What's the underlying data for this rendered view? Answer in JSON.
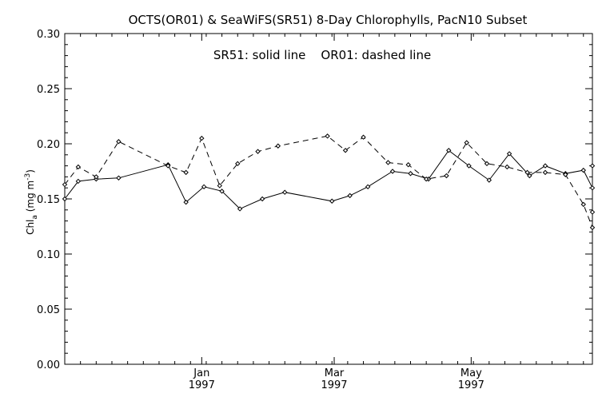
{
  "chart_data": {
    "type": "line",
    "title": "OCTS(OR01) & SeaWiFS(SR51) 8-Day Chlorophylls, PacN10 Subset",
    "annotation": "SR51: solid line    OR01: dashed line",
    "ylabel": "Chl_a (mg m^-3)",
    "ylabel_main": "Chl",
    "ylabel_sub": "a",
    "ylabel_unit": "(mg m",
    "ylabel_sup": "-3",
    "ylabel_close": ")",
    "ylim": [
      0.0,
      0.3
    ],
    "yticks": [
      "0.00",
      "0.05",
      "0.10",
      "0.15",
      "0.20",
      "0.25",
      "0.30"
    ],
    "xlim": [
      "1996-11-01",
      "1997-06-24"
    ],
    "xticks": [
      {
        "date": "1997-01-01",
        "label": "Jan",
        "year": "1997"
      },
      {
        "date": "1997-03-01",
        "label": "Mar",
        "year": "1997"
      },
      {
        "date": "1997-05-01",
        "label": "May",
        "year": "1997"
      }
    ],
    "grid": false,
    "x": [
      "1996-11-01",
      "1996-11-09",
      "1996-11-17",
      "1996-11-25",
      "1996-12-19",
      "1996-12-27",
      "1997-01-02",
      "1997-01-10",
      "1997-01-18",
      "1997-01-26",
      "1997-02-03",
      "1997-02-11",
      "1997-02-19",
      "1997-02-27",
      "1997-03-07",
      "1997-03-15",
      "1997-03-23",
      "1997-03-31",
      "1997-04-08",
      "1997-04-16",
      "1997-04-24",
      "1997-05-02",
      "1997-05-10",
      "1997-05-18",
      "1997-05-26",
      "1997-06-03",
      "1997-06-11",
      "1997-06-19",
      "1997-06-24"
    ],
    "series": [
      {
        "name": "SR51",
        "style": "solid",
        "color": "#000000",
        "points": [
          [
            "1996-11-01",
            0.15
          ],
          [
            "1996-11-07",
            0.166
          ],
          [
            "1996-11-15",
            0.168
          ],
          [
            "1996-11-25",
            0.169
          ],
          [
            "1996-12-17",
            0.181
          ],
          [
            "1996-12-25",
            0.147
          ],
          [
            "1997-01-02",
            0.161
          ],
          [
            "1997-01-10",
            0.157
          ],
          [
            "1997-01-18",
            0.141
          ],
          [
            "1997-01-28",
            0.15
          ],
          [
            "1997-02-07",
            0.156
          ],
          [
            "1997-02-28",
            0.148
          ],
          [
            "1997-03-08",
            0.153
          ],
          [
            "1997-03-16",
            0.161
          ],
          [
            "1997-03-27",
            0.175
          ],
          [
            "1997-04-04",
            0.173
          ],
          [
            "1997-04-12",
            0.168
          ],
          [
            "1997-04-21",
            0.194
          ],
          [
            "1997-04-30",
            0.18
          ],
          [
            "1997-05-09",
            0.167
          ],
          [
            "1997-05-18",
            0.191
          ],
          [
            "1997-05-27",
            0.171
          ],
          [
            "1997-06-03",
            0.18
          ],
          [
            "1997-06-12",
            0.173
          ],
          [
            "1997-06-20",
            0.176
          ],
          [
            "1997-06-24",
            0.16
          ],
          [
            "1997-06-29",
            0.18
          ]
        ]
      },
      {
        "name": "OR01",
        "style": "dashed",
        "color": "#000000",
        "points": [
          [
            "1996-11-01",
            0.163
          ],
          [
            "1996-11-07",
            0.179
          ],
          [
            "1996-11-15",
            0.17
          ],
          [
            "1996-11-25",
            0.202
          ],
          [
            "1996-12-17",
            0.18
          ],
          [
            "1996-12-25",
            0.174
          ],
          [
            "1997-01-01",
            0.205
          ],
          [
            "1997-01-09",
            0.162
          ],
          [
            "1997-01-17",
            0.182
          ],
          [
            "1997-01-26",
            0.193
          ],
          [
            "1997-02-04",
            0.198
          ],
          [
            "1997-02-26",
            0.207
          ],
          [
            "1997-03-06",
            0.194
          ],
          [
            "1997-03-14",
            0.206
          ],
          [
            "1997-03-25",
            0.183
          ],
          [
            "1997-04-03",
            0.181
          ],
          [
            "1997-04-11",
            0.168
          ],
          [
            "1997-04-20",
            0.171
          ],
          [
            "1997-04-29",
            0.201
          ],
          [
            "1997-05-08",
            0.182
          ],
          [
            "1997-05-17",
            0.179
          ],
          [
            "1997-05-26",
            0.174
          ],
          [
            "1997-06-03",
            0.174
          ],
          [
            "1997-06-12",
            0.172
          ],
          [
            "1997-06-20",
            0.145
          ],
          [
            "1997-06-24",
            0.124
          ],
          [
            "1997-06-29",
            0.138
          ]
        ]
      }
    ]
  }
}
